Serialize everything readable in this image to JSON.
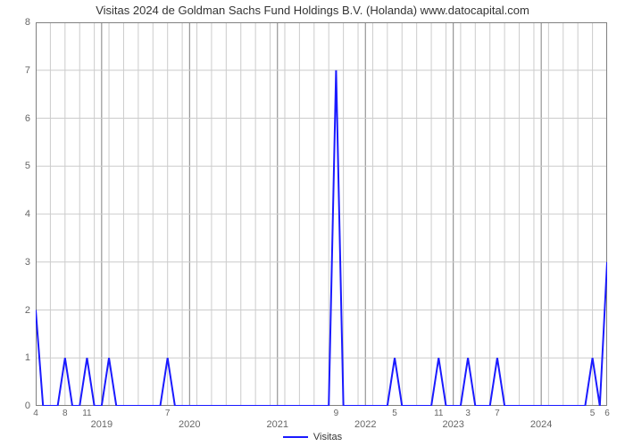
{
  "chart": {
    "type": "line",
    "title": "Visitas 2024 de Goldman Sachs Fund Holdings B.V. (Holanda) www.datocapital.com",
    "title_fontsize": 13,
    "title_color": "#333333",
    "background_color": "#ffffff",
    "plot_border_color": "#808080",
    "grid_major_color": "#808080",
    "grid_minor_color": "#cccccc",
    "line_color": "#1a1aff",
    "line_width": 2,
    "y": {
      "min": 0,
      "max": 8,
      "ticks": [
        0,
        1,
        2,
        3,
        4,
        5,
        6,
        7,
        8
      ],
      "label_fontsize": 11,
      "label_color": "#666666"
    },
    "x": {
      "min": 0,
      "max": 78,
      "year_ticks": [
        {
          "label": "2019",
          "pos": 9
        },
        {
          "label": "2020",
          "pos": 21
        },
        {
          "label": "2021",
          "pos": 33
        },
        {
          "label": "2022",
          "pos": 45
        },
        {
          "label": "2023",
          "pos": 57
        },
        {
          "label": "2024",
          "pos": 69
        }
      ],
      "value_ticks": [
        {
          "label": "4",
          "pos": 0
        },
        {
          "label": "8",
          "pos": 4
        },
        {
          "label": "11",
          "pos": 7
        },
        {
          "label": "7",
          "pos": 18
        },
        {
          "label": "9",
          "pos": 41
        },
        {
          "label": "5",
          "pos": 49
        },
        {
          "label": "11",
          "pos": 55
        },
        {
          "label": "3",
          "pos": 59
        },
        {
          "label": "7",
          "pos": 63
        },
        {
          "label": "5",
          "pos": 76
        },
        {
          "label": "6",
          "pos": 78
        }
      ],
      "minor_gridlines": [
        2,
        4,
        6,
        8,
        10,
        12,
        14,
        16,
        18,
        20,
        22,
        24,
        26,
        28,
        30,
        32,
        34,
        36,
        38,
        40,
        42,
        44,
        46,
        48,
        50,
        52,
        54,
        56,
        58,
        60,
        62,
        64,
        66,
        68,
        70,
        72,
        74,
        76
      ],
      "label_fontsize": 10,
      "label_color": "#666666"
    },
    "series": {
      "name": "Visitas",
      "points": [
        [
          0,
          2
        ],
        [
          1,
          0
        ],
        [
          2,
          0
        ],
        [
          3,
          0
        ],
        [
          4,
          1
        ],
        [
          5,
          0
        ],
        [
          6,
          0
        ],
        [
          7,
          1
        ],
        [
          8,
          0
        ],
        [
          9,
          0
        ],
        [
          10,
          1
        ],
        [
          11,
          0
        ],
        [
          12,
          0
        ],
        [
          13,
          0
        ],
        [
          14,
          0
        ],
        [
          15,
          0
        ],
        [
          16,
          0
        ],
        [
          17,
          0
        ],
        [
          18,
          1
        ],
        [
          19,
          0
        ],
        [
          20,
          0
        ],
        [
          21,
          0
        ],
        [
          22,
          0
        ],
        [
          23,
          0
        ],
        [
          24,
          0
        ],
        [
          25,
          0
        ],
        [
          26,
          0
        ],
        [
          27,
          0
        ],
        [
          28,
          0
        ],
        [
          29,
          0
        ],
        [
          30,
          0
        ],
        [
          31,
          0
        ],
        [
          32,
          0
        ],
        [
          33,
          0
        ],
        [
          34,
          0
        ],
        [
          35,
          0
        ],
        [
          36,
          0
        ],
        [
          37,
          0
        ],
        [
          38,
          0
        ],
        [
          39,
          0
        ],
        [
          40,
          0
        ],
        [
          41,
          7
        ],
        [
          42,
          0
        ],
        [
          43,
          0
        ],
        [
          44,
          0
        ],
        [
          45,
          0
        ],
        [
          46,
          0
        ],
        [
          47,
          0
        ],
        [
          48,
          0
        ],
        [
          49,
          1
        ],
        [
          50,
          0
        ],
        [
          51,
          0
        ],
        [
          52,
          0
        ],
        [
          53,
          0
        ],
        [
          54,
          0
        ],
        [
          55,
          1
        ],
        [
          56,
          0
        ],
        [
          57,
          0
        ],
        [
          58,
          0
        ],
        [
          59,
          1
        ],
        [
          60,
          0
        ],
        [
          61,
          0
        ],
        [
          62,
          0
        ],
        [
          63,
          1
        ],
        [
          64,
          0
        ],
        [
          65,
          0
        ],
        [
          66,
          0
        ],
        [
          67,
          0
        ],
        [
          68,
          0
        ],
        [
          69,
          0
        ],
        [
          70,
          0
        ],
        [
          71,
          0
        ],
        [
          72,
          0
        ],
        [
          73,
          0
        ],
        [
          74,
          0
        ],
        [
          75,
          0
        ],
        [
          76,
          1
        ],
        [
          77,
          0
        ],
        [
          78,
          3
        ]
      ]
    },
    "legend": {
      "label": "Visitas"
    }
  }
}
